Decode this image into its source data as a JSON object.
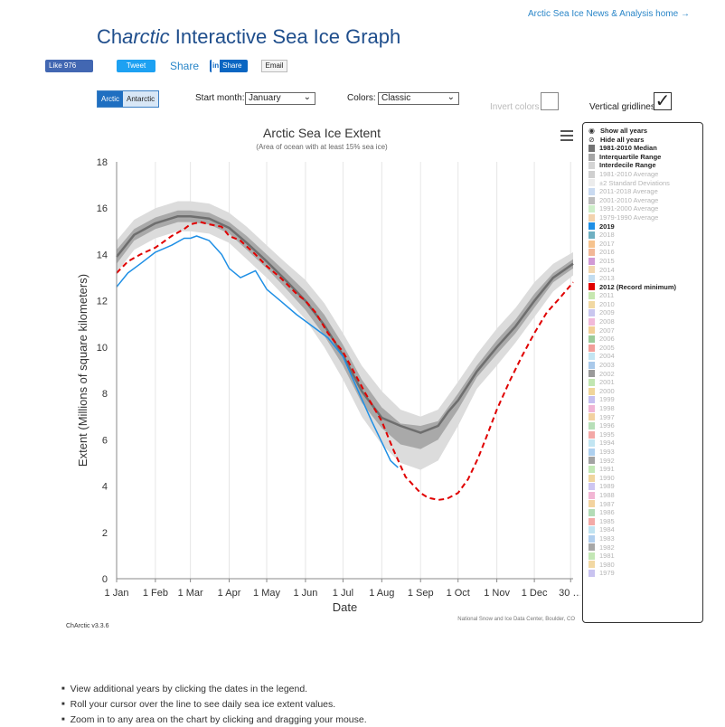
{
  "header": {
    "home_link": "Arctic Sea Ice News & Analysis home →",
    "title_prefix": "Ch",
    "title_italic": "arctic",
    "title_rest": " Interactive Sea Ice Graph"
  },
  "social": {
    "like": "Like 976",
    "tweet": "Tweet",
    "share": "Share",
    "linkedin_in": "in",
    "linkedin_share": "Share",
    "email": "Email"
  },
  "controls": {
    "hemisphere_options": [
      "Arctic",
      "Antarctic"
    ],
    "hemisphere_selected": "Arctic",
    "start_month_label": "Start month:",
    "start_month_value": "January",
    "colors_label": "Colors:",
    "colors_value": "Classic",
    "invert_label": "Invert colors",
    "invert_checked": false,
    "gridlines_label": "Vertical gridlines",
    "gridlines_checked": true
  },
  "legend": {
    "show_all": "Show all years",
    "hide_all": "Hide all years",
    "items": [
      {
        "label": "1981-2010 Median",
        "color": "#737373",
        "bold": true
      },
      {
        "label": "Interquartile Range",
        "color": "#a6a6a6",
        "bold": true
      },
      {
        "label": "Interdecile Range",
        "color": "#d4d4d4",
        "bold": true
      },
      {
        "label": "1981-2010 Average",
        "color": "#cfcfcf",
        "bold": false
      },
      {
        "label": "±2 Standard Deviations",
        "color": "#ececec",
        "bold": false
      },
      {
        "label": "2011-2018 Average",
        "color": "#c9daf1",
        "bold": false
      },
      {
        "label": "2001-2010 Average",
        "color": "#bdbdbd",
        "bold": false
      },
      {
        "label": "1991-2000 Average",
        "color": "#cdeec9",
        "bold": false
      },
      {
        "label": "1979-1990 Average",
        "color": "#f3d3ae",
        "bold": false
      },
      {
        "label": "2019",
        "color": "#1f8fe5",
        "bold": true
      },
      {
        "label": "2018",
        "color": "#6fb0c2",
        "bold": false
      },
      {
        "label": "2017",
        "color": "#f6c38e",
        "bold": false
      },
      {
        "label": "2016",
        "color": "#f2b897",
        "bold": false
      },
      {
        "label": "2015",
        "color": "#d19ad6",
        "bold": false
      },
      {
        "label": "2014",
        "color": "#f2d7b0",
        "bold": false
      },
      {
        "label": "2013",
        "color": "#c3ddf0",
        "bold": false
      },
      {
        "label": "2012 (Record minimum)",
        "color": "#e00000",
        "bold": true
      },
      {
        "label": "2011",
        "color": "#c6e7b0",
        "bold": false
      },
      {
        "label": "2010",
        "color": "#f1d8a2",
        "bold": false
      },
      {
        "label": "2009",
        "color": "#c9c7ef",
        "bold": false
      },
      {
        "label": "2008",
        "color": "#f1b9d9",
        "bold": false
      },
      {
        "label": "2007",
        "color": "#f2cf97",
        "bold": false
      },
      {
        "label": "2006",
        "color": "#9ccc9a",
        "bold": false
      },
      {
        "label": "2005",
        "color": "#f29e99",
        "bold": false
      },
      {
        "label": "2004",
        "color": "#c3e5f2",
        "bold": false
      },
      {
        "label": "2003",
        "color": "#a9c9ea",
        "bold": false
      },
      {
        "label": "2002",
        "color": "#9a9a9a",
        "bold": false
      },
      {
        "label": "2001",
        "color": "#c1e6b1",
        "bold": false
      },
      {
        "label": "2000",
        "color": "#f0d59a",
        "bold": false
      },
      {
        "label": "1999",
        "color": "#c5bff0",
        "bold": false
      },
      {
        "label": "1998",
        "color": "#f0b5d5",
        "bold": false
      },
      {
        "label": "1997",
        "color": "#f2d1a0",
        "bold": false
      },
      {
        "label": "1996",
        "color": "#b7dfb8",
        "bold": false
      },
      {
        "label": "1995",
        "color": "#f3a8a6",
        "bold": false
      },
      {
        "label": "1994",
        "color": "#c2e5f2",
        "bold": false
      },
      {
        "label": "1993",
        "color": "#aed0ef",
        "bold": false
      },
      {
        "label": "1992",
        "color": "#a3a3a3",
        "bold": false
      },
      {
        "label": "1991",
        "color": "#c2e8b6",
        "bold": false
      },
      {
        "label": "1990",
        "color": "#f0d59e",
        "bold": false
      },
      {
        "label": "1989",
        "color": "#cdc5f1",
        "bold": false
      },
      {
        "label": "1988",
        "color": "#f2b6d4",
        "bold": false
      },
      {
        "label": "1987",
        "color": "#f3d39f",
        "bold": false
      },
      {
        "label": "1986",
        "color": "#b3dcb6",
        "bold": false
      },
      {
        "label": "1985",
        "color": "#f3aaa7",
        "bold": false
      },
      {
        "label": "1984",
        "color": "#c1e3f1",
        "bold": false
      },
      {
        "label": "1983",
        "color": "#b1cfee",
        "bold": false
      },
      {
        "label": "1982",
        "color": "#a7a7a7",
        "bold": false
      },
      {
        "label": "1981",
        "color": "#c3e7b5",
        "bold": false
      },
      {
        "label": "1980",
        "color": "#f2d8a3",
        "bold": false
      },
      {
        "label": "1979",
        "color": "#c9c3f0",
        "bold": false
      }
    ]
  },
  "chart_data": {
    "type": "line",
    "title": "Arctic Sea Ice Extent",
    "subtitle": "(Area of ocean with at least 15% sea ice)",
    "xlabel": "Date",
    "ylabel": "Extent (Millions of square kilometers)",
    "x_ticks": [
      "1 Jan",
      "1 Feb",
      "1 Mar",
      "1 Apr",
      "1 May",
      "1 Jun",
      "1 Jul",
      "1 Aug",
      "1 Sep",
      "1 Oct",
      "1 Nov",
      "1 Dec",
      "30 …"
    ],
    "x_tick_days": [
      1,
      32,
      60,
      91,
      121,
      152,
      182,
      213,
      244,
      274,
      305,
      335,
      364
    ],
    "ylim": [
      0,
      18
    ],
    "y_ticks": [
      0,
      2,
      4,
      6,
      8,
      10,
      12,
      14,
      16,
      18
    ],
    "grid": {
      "horizontal": false,
      "vertical": true
    },
    "credit": "National Snow and Ice Data Center, Boulder, CO",
    "bands": {
      "interdecile": {
        "color": "#dcdcdc",
        "x": [
          1,
          15,
          32,
          50,
          60,
          75,
          91,
          105,
          121,
          135,
          152,
          167,
          182,
          197,
          213,
          228,
          244,
          258,
          274,
          289,
          305,
          320,
          335,
          350,
          366
        ],
        "low": [
          13.2,
          14.2,
          14.7,
          15.0,
          15.0,
          14.9,
          14.5,
          13.8,
          13.0,
          12.2,
          11.2,
          10.0,
          8.6,
          7.0,
          5.8,
          5.0,
          4.7,
          5.1,
          6.6,
          8.2,
          9.2,
          10.2,
          11.3,
          12.4,
          13.1
        ],
        "high": [
          14.6,
          15.5,
          16.0,
          16.3,
          16.3,
          16.2,
          15.8,
          15.2,
          14.4,
          13.7,
          12.9,
          11.9,
          10.6,
          9.2,
          8.1,
          7.3,
          7.0,
          7.3,
          8.5,
          9.7,
          10.8,
          11.7,
          12.8,
          13.6,
          14.1
        ]
      },
      "interquartile": {
        "color": "#a9a9a9",
        "x": [
          1,
          15,
          32,
          50,
          60,
          75,
          91,
          105,
          121,
          135,
          152,
          167,
          182,
          197,
          213,
          228,
          244,
          258,
          274,
          289,
          305,
          320,
          335,
          350,
          366
        ],
        "low": [
          13.6,
          14.6,
          15.1,
          15.4,
          15.4,
          15.3,
          14.9,
          14.2,
          13.4,
          12.6,
          11.6,
          10.5,
          9.2,
          7.6,
          6.5,
          5.8,
          5.6,
          6.0,
          7.3,
          8.7,
          9.7,
          10.6,
          11.7,
          12.8,
          13.4
        ],
        "high": [
          14.2,
          15.1,
          15.6,
          15.9,
          15.9,
          15.8,
          15.4,
          14.8,
          14.0,
          13.3,
          12.4,
          11.4,
          10.1,
          8.6,
          7.4,
          6.7,
          6.6,
          6.8,
          8.0,
          9.2,
          10.3,
          11.2,
          12.3,
          13.2,
          13.8
        ]
      }
    },
    "series": [
      {
        "name": "1981-2010 Median",
        "color": "#6e6e6e",
        "dash": "",
        "width": 2.5,
        "x": [
          1,
          15,
          32,
          50,
          60,
          75,
          91,
          105,
          121,
          135,
          152,
          167,
          182,
          197,
          213,
          228,
          244,
          258,
          266,
          274,
          289,
          305,
          320,
          335,
          350,
          366
        ],
        "y": [
          13.9,
          14.85,
          15.35,
          15.65,
          15.65,
          15.55,
          15.15,
          14.5,
          13.7,
          12.95,
          12.0,
          10.95,
          9.65,
          8.1,
          6.95,
          6.6,
          6.3,
          6.6,
          7.2,
          7.7,
          8.95,
          10.0,
          10.9,
          12.0,
          13.0,
          13.6
        ]
      },
      {
        "name": "2019",
        "color": "#1f8fe5",
        "dash": "",
        "width": 1.5,
        "x": [
          1,
          10,
          20,
          32,
          45,
          55,
          60,
          65,
          75,
          85,
          91,
          100,
          112,
          121,
          132,
          145,
          160,
          170,
          182,
          195,
          205,
          213,
          220,
          226
        ],
        "y": [
          12.6,
          13.2,
          13.6,
          14.1,
          14.4,
          14.7,
          14.7,
          14.8,
          14.6,
          14.0,
          13.4,
          13.0,
          13.3,
          12.5,
          12.0,
          11.4,
          10.8,
          10.4,
          9.6,
          8.0,
          6.8,
          5.9,
          5.1,
          4.8
        ]
      },
      {
        "name": "2012 (Record minimum)",
        "color": "#e00000",
        "dash": "6,4",
        "width": 2,
        "x": [
          1,
          10,
          20,
          32,
          45,
          55,
          60,
          68,
          75,
          85,
          91,
          100,
          112,
          121,
          132,
          145,
          152,
          160,
          170,
          182,
          190,
          200,
          213,
          222,
          232,
          244,
          250,
          258,
          265,
          274,
          282,
          290,
          298,
          305,
          315,
          325,
          335,
          345,
          355,
          366
        ],
        "y": [
          13.2,
          13.7,
          14.0,
          14.3,
          14.8,
          15.1,
          15.3,
          15.4,
          15.3,
          15.2,
          14.8,
          14.6,
          14.0,
          13.5,
          13.0,
          12.3,
          12.0,
          11.5,
          10.6,
          9.8,
          9.0,
          8.0,
          6.8,
          5.6,
          4.4,
          3.7,
          3.5,
          3.4,
          3.45,
          3.7,
          4.3,
          5.2,
          6.3,
          7.3,
          8.5,
          9.6,
          10.6,
          11.5,
          12.1,
          12.8
        ]
      }
    ]
  },
  "footer": {
    "version": "ChArctic v3.3.6",
    "tips": [
      "View additional years by clicking the dates in the legend.",
      "Roll your cursor over the line to see daily sea ice extent values.",
      "Zoom in to any area on the chart by clicking and dragging your mouse."
    ]
  }
}
